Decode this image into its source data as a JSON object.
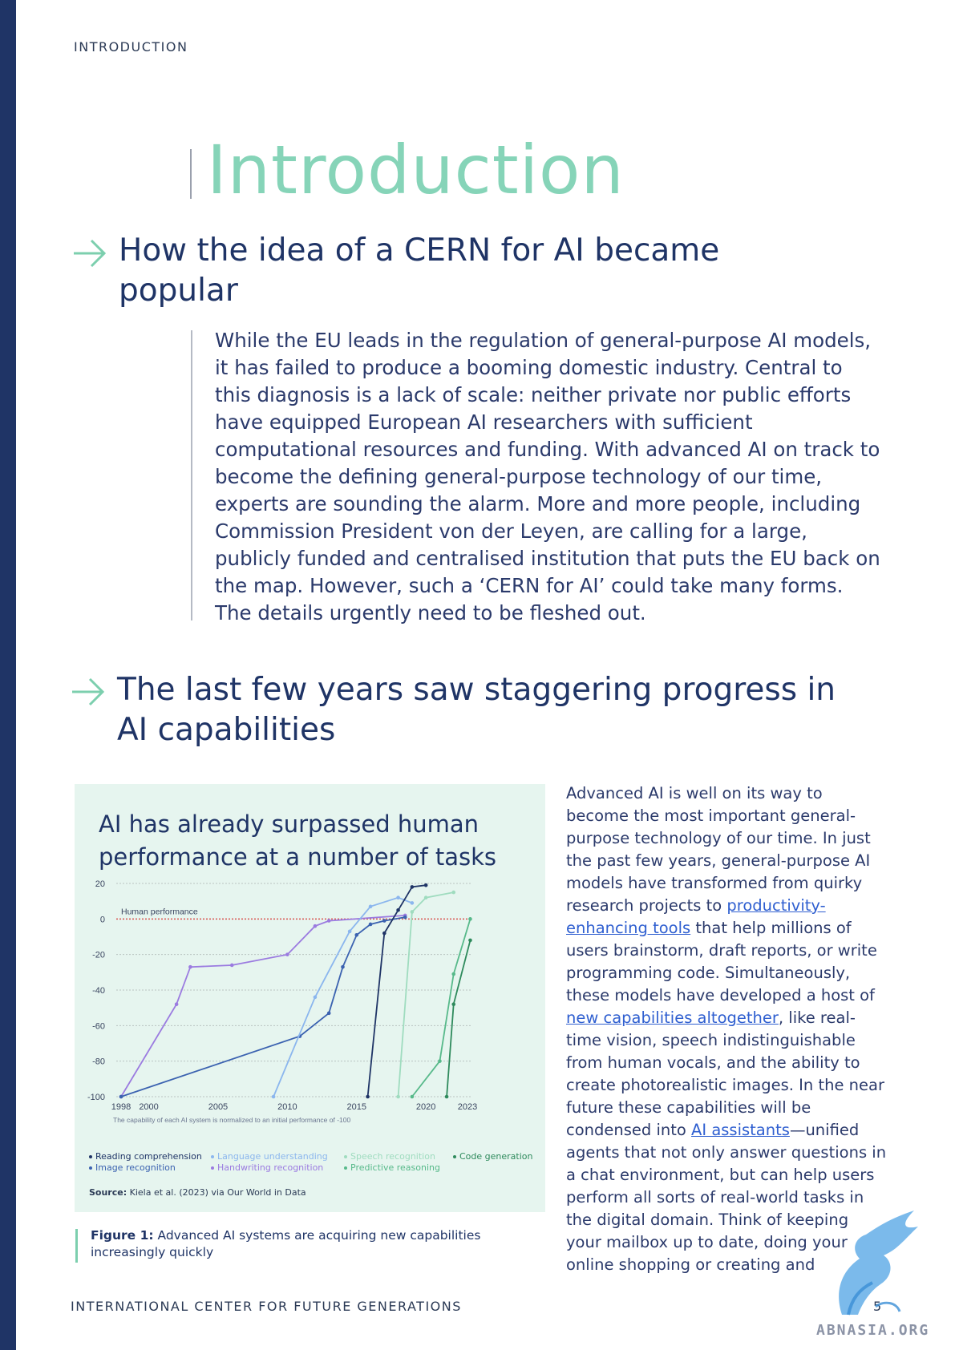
{
  "running_head": "INTRODUCTION",
  "page_title": "Introduction",
  "section1": {
    "heading_line1": "How the idea of a CERN for AI became",
    "heading_line2": "popular",
    "paragraph": "While the EU leads in the regulation of general-purpose AI models, it has failed to produce a booming domestic industry. Central to this diagnosis is a lack of scale: neither private nor public efforts have equipped European AI researchers with sufficient computational resources and funding. With advanced AI on track to become the defining general-purpose technology of our time, experts are sounding the alarm. More and more people, including Commission President von der Leyen, are calling for a large, publicly funded and centralised institution that puts the EU back on the map. However, such a ‘CERN for AI’ could take many forms. The details urgently need to be fleshed out."
  },
  "section2": {
    "heading_line1": "The last few years saw staggering progress in",
    "heading_line2": "AI capabilities"
  },
  "side_text": {
    "p1": "Advanced AI is well on its way to become the most important general-purpose technology of our time. In just the past few years, general-purpose AI models have transformed from quirky research projects to ",
    "link1": "productivity-enhancing tools",
    "p2": " that help millions of users brainstorm, draft reports, or write programming code. Simultaneously, these models have developed a host of ",
    "link2": "new capabilities altogether",
    "p3": ", like real-time vision, speech indistinguishable from human vocals, and the ability to create photorealistic images. In the near future these capabilities will be condensed into ",
    "link3": "AI assistants",
    "p4": "—unified agents that not only answer questions in a chat environment, but can help users perform all sorts of real-world tasks in the digital domain. Think of keeping your mailbox up to date, doing your online shopping or creating and"
  },
  "chart_data": {
    "type": "line",
    "title": "AI has already surpassed human performance at a number of tasks",
    "note": "The capability of each AI system is normalized to an initial performance of -100",
    "reference_line_label": "Human performance",
    "reference_value": 0,
    "ylim": [
      -100,
      20
    ],
    "xlim": [
      1998,
      2023
    ],
    "y_ticks": [
      20,
      0,
      -20,
      -40,
      -60,
      -80,
      -100
    ],
    "x_ticks": [
      1998,
      2000,
      2005,
      2010,
      2015,
      2020,
      2023
    ],
    "colors": {
      "Reading comprehension": "#1f3466",
      "Image recognition": "#3b62b0",
      "Language understanding": "#8bb6ee",
      "Handwriting recognition": "#9b7be0",
      "Speech recognition": "#9fdcbf",
      "Predictive reasoning": "#57b98a",
      "Code generation": "#2e8a5c",
      "reference": "#d9534f"
    },
    "series": [
      {
        "name": "Handwriting recognition",
        "x": [
          1998,
          2002,
          2003,
          2006,
          2010,
          2012,
          2013,
          2018.5
        ],
        "y": [
          -100,
          -48,
          -27,
          -26,
          -20,
          -4,
          -1,
          2
        ]
      },
      {
        "name": "Image recognition",
        "x": [
          1998,
          2010.9,
          2013,
          2014,
          2015,
          2016,
          2017,
          2018.5
        ],
        "y": [
          -100,
          -66,
          -53,
          -27,
          -9,
          -3,
          -1,
          1
        ]
      },
      {
        "name": "Language understanding",
        "x": [
          2009,
          2012,
          2014.5,
          2016,
          2018,
          2019
        ],
        "y": [
          -100,
          -44,
          -7,
          7,
          12,
          9
        ]
      },
      {
        "name": "Reading comprehension",
        "x": [
          2015.8,
          2017,
          2018,
          2019,
          2020
        ],
        "y": [
          -100,
          -8,
          5,
          18,
          19
        ]
      },
      {
        "name": "Speech recognition",
        "x": [
          2018,
          2019,
          2020,
          2022
        ],
        "y": [
          -100,
          4,
          12,
          15
        ]
      },
      {
        "name": "Predictive reasoning",
        "x": [
          2019,
          2021,
          2022,
          2023.2
        ],
        "y": [
          -100,
          -80,
          -31,
          0
        ]
      },
      {
        "name": "Code generation",
        "x": [
          2021.5,
          2022,
          2023.2
        ],
        "y": [
          -100,
          -48,
          -12
        ]
      }
    ],
    "legend": [
      "Reading comprehension",
      "Image recognition",
      "Language understanding",
      "Handwriting recognition",
      "Speech recognition",
      "Predictive reasoning",
      "Code generation"
    ],
    "source_label": "Source:",
    "source_text": "Kiela et al. (2023) via Our World in Data"
  },
  "caption": {
    "label": "Figure 1:",
    "text": "Advanced AI systems are acquiring new capabilities increasingly quickly"
  },
  "footer": "INTERNATIONAL CENTER FOR FUTURE GENERATIONS",
  "page_number": "5",
  "watermark": "ABNASIA.ORG"
}
